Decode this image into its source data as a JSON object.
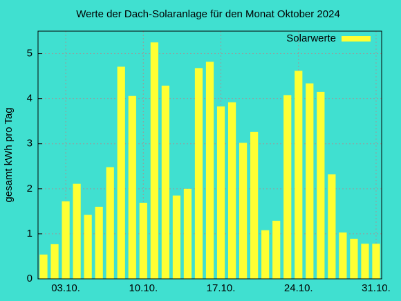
{
  "chart_data": {
    "type": "bar",
    "title": "Werte der Dach-Solaranlage für den Monat Oktober 2024",
    "y_label": "gesamt kWh pro Tag",
    "categories": [
      null,
      null,
      "03.10.",
      null,
      null,
      null,
      null,
      null,
      null,
      "10.10.",
      null,
      null,
      null,
      null,
      null,
      null,
      "17.10.",
      null,
      null,
      null,
      null,
      null,
      null,
      "24.10.",
      null,
      null,
      null,
      null,
      null,
      null,
      "31.10."
    ],
    "series": [
      {
        "name": "Solarwerte",
        "color": "#ffff33",
        "values": [
          0.54,
          0.77,
          1.72,
          2.11,
          1.42,
          1.6,
          2.48,
          4.71,
          4.06,
          1.69,
          5.25,
          4.29,
          1.85,
          2.0,
          4.68,
          4.82,
          3.83,
          3.92,
          3.02,
          3.26,
          1.08,
          1.29,
          4.08,
          4.62,
          4.34,
          4.15,
          2.32,
          1.03,
          0.89,
          0.78,
          0.78
        ]
      }
    ],
    "ylim": [
      0,
      5.5
    ],
    "yticks": [
      0,
      1,
      2,
      3,
      4,
      5
    ],
    "grid": true,
    "legend": "top-right"
  }
}
